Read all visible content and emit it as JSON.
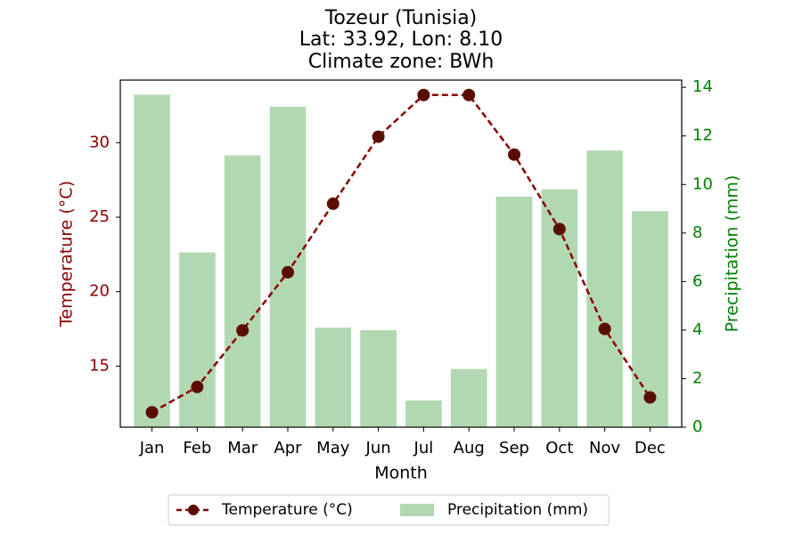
{
  "chart_data": {
    "type": "bar+line",
    "title_lines": [
      "Tozeur (Tunisia)",
      "Lat: 33.92, Lon: 8.10",
      "Climate zone: BWh"
    ],
    "xlabel": "Month",
    "categories": [
      "Jan",
      "Feb",
      "Mar",
      "Apr",
      "May",
      "Jun",
      "Jul",
      "Aug",
      "Sep",
      "Oct",
      "Nov",
      "Dec"
    ],
    "temperature": {
      "name": "Temperature (°C)",
      "axis_label": "Temperature (°C)",
      "values": [
        11.9,
        13.6,
        17.4,
        21.3,
        25.9,
        30.4,
        33.2,
        33.2,
        29.2,
        24.2,
        17.5,
        12.9
      ],
      "ylim": [
        10.9,
        34.2
      ],
      "ticks": [
        15,
        20,
        25,
        30
      ],
      "color": "#8b0000",
      "style": "dashed line with circle markers"
    },
    "precipitation": {
      "name": "Precipitation (mm)",
      "axis_label": "Precipitation (mm)",
      "values": [
        13.7,
        7.2,
        11.2,
        13.2,
        4.1,
        4.0,
        1.1,
        2.4,
        9.5,
        9.8,
        11.4,
        8.9
      ],
      "ylim": [
        0,
        14.3
      ],
      "ticks": [
        0,
        2,
        4,
        6,
        8,
        10,
        12,
        14
      ],
      "bar_color": "#b2d8b2",
      "axis_color": "#008000"
    },
    "legend": {
      "position": "bottom-center",
      "items": [
        "Temperature (°C)",
        "Precipitation (mm)"
      ]
    },
    "grid": false
  }
}
